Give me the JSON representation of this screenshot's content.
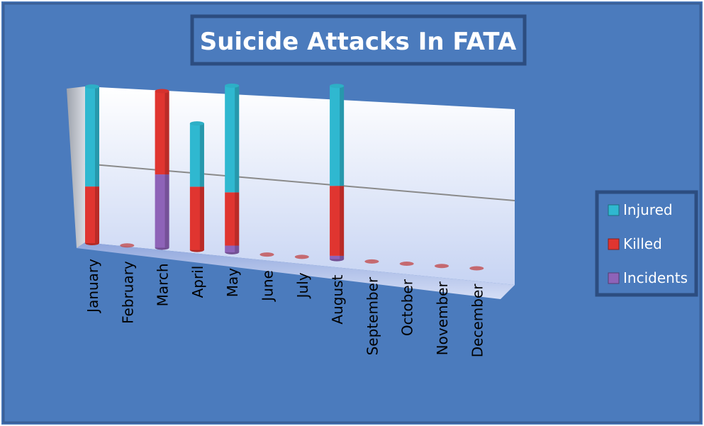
{
  "chart_data": {
    "type": "bar",
    "stacked": true,
    "title": "Suicide Attacks In FATA",
    "categories": [
      "January",
      "February",
      "March",
      "April",
      "May",
      "June",
      "July",
      "August",
      "September",
      "October",
      "November",
      "December"
    ],
    "series": [
      {
        "name": "Injured",
        "color": "#2fb8d0",
        "values": [
          30,
          0,
          0,
          19,
          32,
          0,
          0,
          30,
          0,
          0,
          0,
          0
        ]
      },
      {
        "name": "Killed",
        "color": "#e03530",
        "values": [
          17,
          0,
          25,
          19,
          16,
          0,
          0,
          21,
          0,
          0,
          0,
          0
        ]
      },
      {
        "name": "Incidents",
        "color": "#8e63b8",
        "values": [
          0,
          0,
          22,
          0,
          2,
          0,
          0,
          1,
          0,
          0,
          0,
          0
        ]
      }
    ],
    "ylim": [
      0,
      50
    ],
    "grid": true,
    "legend_position": "right"
  },
  "colors": {
    "background": "#4b7bbd",
    "frame": "#2c4d80",
    "wall": "#e6ecf8",
    "floor": "#b7c7ee"
  }
}
